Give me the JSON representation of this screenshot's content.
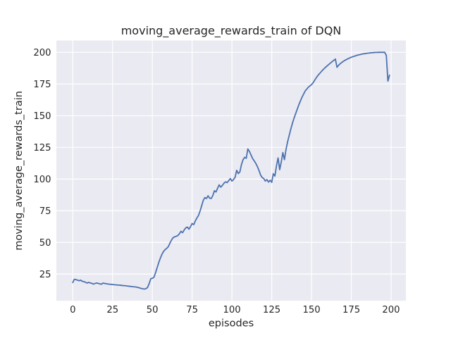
{
  "figure": {
    "title": "moving_average_rewards_train of DQN",
    "xlabel": "episodes",
    "ylabel": "moving_average_rewards_train"
  },
  "chart_data": {
    "type": "line",
    "title": "moving_average_rewards_train of DQN",
    "xlabel": "episodes",
    "ylabel": "moving_average_rewards_train",
    "x_ticks": [
      0,
      25,
      50,
      75,
      100,
      125,
      150,
      175,
      200
    ],
    "y_ticks": [
      25,
      50,
      75,
      100,
      125,
      150,
      175,
      200
    ],
    "xlim": [
      -10.3,
      209.3
    ],
    "ylim": [
      3.9,
      209.3
    ],
    "grid": true,
    "grid_color": "#ffffff",
    "axes_bg": "#EAEAF2",
    "line_color": "#4C72B0",
    "text_color": "#262626",
    "legend": "none",
    "series": [
      {
        "name": "moving_average_rewards_train",
        "x_start": 0,
        "x_step": 1,
        "values": [
          18.3,
          20.9,
          20.6,
          20.2,
          19.8,
          20.2,
          19.3,
          19.0,
          18.6,
          17.9,
          18.5,
          18.0,
          17.7,
          17.1,
          17.6,
          18.0,
          17.6,
          17.3,
          17.0,
          17.9,
          17.6,
          17.4,
          17.2,
          17.0,
          16.9,
          16.8,
          16.6,
          16.5,
          16.4,
          16.3,
          16.2,
          16.0,
          15.9,
          15.8,
          15.6,
          15.5,
          15.3,
          15.2,
          15.0,
          14.9,
          14.7,
          14.4,
          14.1,
          13.7,
          13.4,
          13.2,
          13.5,
          14.5,
          17.5,
          21.3,
          21.7,
          22.5,
          26.0,
          30.0,
          34.0,
          37.5,
          40.5,
          42.8,
          44.3,
          45.3,
          46.6,
          49.3,
          51.8,
          53.7,
          54.4,
          54.8,
          55.4,
          56.8,
          58.8,
          57.7,
          59.8,
          61.5,
          62.1,
          60.4,
          62.5,
          64.9,
          64.0,
          67.0,
          69.3,
          71.3,
          74.8,
          79.0,
          83.2,
          85.4,
          84.6,
          86.8,
          84.9,
          84.7,
          87.0,
          90.8,
          89.8,
          92.8,
          95.4,
          93.6,
          95.0,
          96.7,
          97.8,
          97.2,
          98.8,
          100.4,
          98.4,
          99.6,
          101.5,
          106.9,
          104.3,
          105.7,
          111.5,
          115.3,
          117.2,
          116.4,
          123.8,
          121.8,
          119.0,
          116.2,
          114.3,
          112.4,
          109.8,
          106.8,
          103.2,
          101.2,
          100.4,
          98.4,
          99.6,
          97.6,
          99.1,
          97.4,
          104.2,
          102.4,
          110.5,
          116.7,
          107.4,
          113.5,
          120.9,
          115.3,
          123.5,
          129.5,
          134.5,
          139.5,
          144.0,
          148.0,
          151.5,
          155.0,
          158.5,
          161.5,
          164.5,
          167.0,
          169.5,
          171.0,
          172.5,
          173.5,
          174.5,
          176.0,
          178.0,
          180.0,
          181.7,
          183.2,
          184.6,
          186.0,
          187.2,
          188.4,
          189.5,
          190.6,
          191.7,
          192.7,
          193.7,
          194.7,
          188.2,
          189.8,
          191.0,
          192.0,
          192.9,
          193.7,
          194.4,
          195.0,
          195.6,
          196.1,
          196.6,
          197.0,
          197.4,
          197.8,
          198.1,
          198.4,
          198.7,
          198.9,
          199.1,
          199.3,
          199.4,
          199.6,
          199.7,
          199.8,
          199.9,
          199.9,
          200.0,
          200.0,
          200.0,
          200.0,
          200.0,
          197.5,
          177.3,
          182.0
        ]
      }
    ]
  }
}
